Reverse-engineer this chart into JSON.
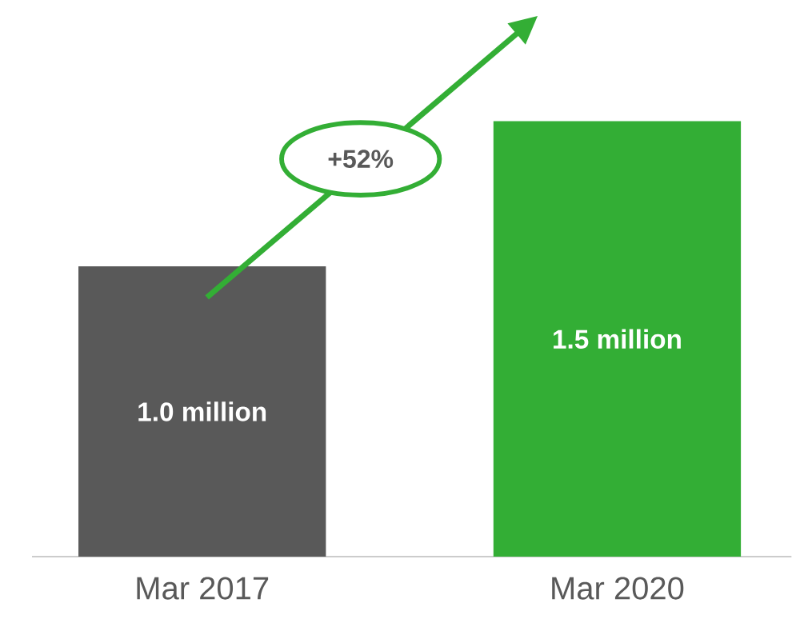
{
  "chart_data": {
    "type": "bar",
    "categories": [
      "Mar 2017",
      "Mar 2020"
    ],
    "values": [
      1.0,
      1.5
    ],
    "colors": [
      "#595959",
      "#33ae35"
    ],
    "value_labels": [
      "1.0 million",
      "1.5 million"
    ],
    "annotations": [
      "+52%"
    ]
  }
}
